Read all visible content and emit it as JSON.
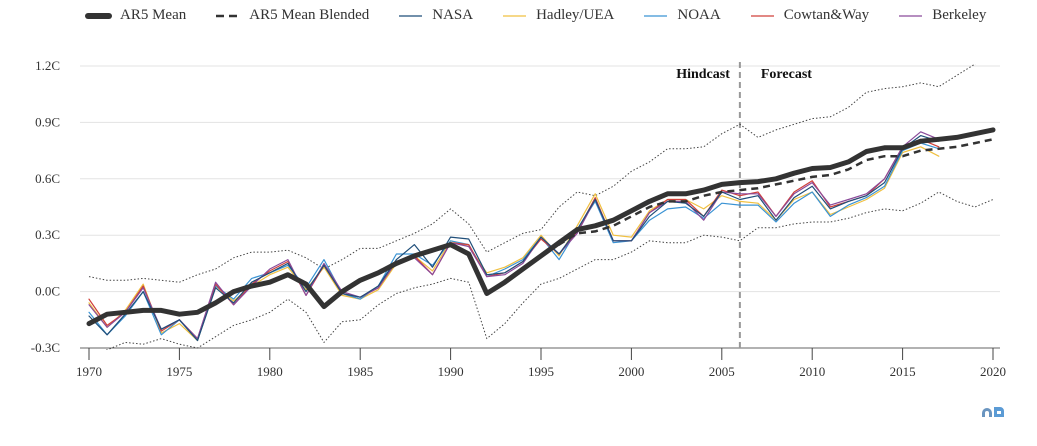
{
  "chart_data": {
    "type": "line",
    "title": "",
    "xlabel": "",
    "ylabel": "",
    "xlim": [
      1970,
      2020
    ],
    "ylim": [
      -0.3,
      1.2
    ],
    "x_ticks": [
      "1970",
      "1975",
      "1980",
      "1985",
      "1990",
      "1995",
      "2000",
      "2005",
      "2010",
      "2015",
      "2020"
    ],
    "y_ticks": [
      "-0.3C",
      "0.0C",
      "0.3C",
      "0.6C",
      "0.9C",
      "1.2C"
    ],
    "y_tick_values": [
      -0.3,
      0,
      0.3,
      0.6,
      0.9,
      1.2
    ],
    "grid": "horizontal",
    "legend_placement": "top",
    "annotations": {
      "hindcast": "Hindcast",
      "forecast": "Forecast",
      "divider_year": 2006
    },
    "series": [
      {
        "name": "AR5 Mean",
        "style": "thick-solid",
        "color": "#333333",
        "start": 1970,
        "values": [
          -0.17,
          -0.12,
          -0.11,
          -0.1,
          -0.1,
          -0.12,
          -0.11,
          -0.06,
          0.0,
          0.03,
          0.05,
          0.09,
          0.04,
          -0.08,
          0.0,
          0.06,
          0.1,
          0.15,
          0.19,
          0.22,
          0.25,
          0.2,
          -0.01,
          0.05,
          0.12,
          0.19,
          0.26,
          0.33,
          0.35,
          0.38,
          0.43,
          0.48,
          0.52,
          0.52,
          0.54,
          0.57,
          0.58,
          0.585,
          0.6,
          0.63,
          0.655,
          0.66,
          0.69,
          0.745,
          0.765,
          0.765,
          0.8,
          0.81,
          0.82,
          0.84,
          0.86
        ]
      },
      {
        "name": "AR5 Mean Blended",
        "style": "dashed",
        "color": "#333333",
        "start": 1970,
        "values": [
          -0.17,
          -0.12,
          -0.11,
          -0.1,
          -0.1,
          -0.12,
          -0.11,
          -0.06,
          0.0,
          0.03,
          0.05,
          0.09,
          0.04,
          -0.08,
          0.0,
          0.06,
          0.1,
          0.15,
          0.19,
          0.22,
          0.25,
          0.2,
          -0.01,
          0.05,
          0.12,
          0.19,
          0.25,
          0.31,
          0.32,
          0.35,
          0.4,
          0.45,
          0.48,
          0.48,
          0.51,
          0.53,
          0.54,
          0.55,
          0.57,
          0.59,
          0.61,
          0.62,
          0.65,
          0.7,
          0.72,
          0.72,
          0.75,
          0.76,
          0.77,
          0.79,
          0.81
        ]
      },
      {
        "name": "NASA",
        "style": "thin",
        "color": "#1f4e79",
        "start": 1970,
        "values": [
          -0.13,
          -0.23,
          -0.12,
          0.0,
          -0.2,
          -0.15,
          -0.26,
          0.02,
          -0.06,
          0.05,
          0.1,
          0.15,
          0.0,
          0.14,
          -0.01,
          -0.03,
          0.03,
          0.17,
          0.25,
          0.13,
          0.29,
          0.28,
          0.09,
          0.1,
          0.16,
          0.29,
          0.2,
          0.33,
          0.49,
          0.27,
          0.27,
          0.4,
          0.48,
          0.47,
          0.4,
          0.53,
          0.49,
          0.51,
          0.38,
          0.5,
          0.56,
          0.44,
          0.48,
          0.51,
          0.58,
          0.76,
          0.83,
          0.8
        ]
      },
      {
        "name": "Hadley/UEA",
        "style": "thin",
        "color": "#f0c040",
        "start": 1970,
        "values": [
          -0.06,
          -0.19,
          -0.1,
          0.04,
          -0.22,
          -0.17,
          -0.26,
          0.03,
          -0.05,
          0.03,
          0.09,
          0.13,
          0.01,
          0.13,
          -0.02,
          -0.04,
          0.01,
          0.15,
          0.19,
          0.11,
          0.27,
          0.24,
          0.1,
          0.13,
          0.18,
          0.3,
          0.19,
          0.35,
          0.52,
          0.3,
          0.29,
          0.43,
          0.49,
          0.49,
          0.44,
          0.51,
          0.48,
          0.47,
          0.38,
          0.49,
          0.53,
          0.41,
          0.45,
          0.49,
          0.55,
          0.74,
          0.77,
          0.72
        ]
      },
      {
        "name": "NOAA",
        "style": "thin",
        "color": "#3a93d4",
        "start": 1970,
        "values": [
          -0.11,
          -0.23,
          -0.13,
          0.0,
          -0.23,
          -0.15,
          -0.26,
          0.03,
          -0.04,
          0.07,
          0.1,
          0.14,
          0.02,
          0.17,
          -0.01,
          -0.04,
          0.03,
          0.2,
          0.2,
          0.14,
          0.27,
          0.25,
          0.08,
          0.12,
          0.17,
          0.29,
          0.17,
          0.33,
          0.48,
          0.26,
          0.27,
          0.38,
          0.44,
          0.45,
          0.39,
          0.47,
          0.46,
          0.46,
          0.37,
          0.47,
          0.53,
          0.4,
          0.46,
          0.5,
          0.56,
          0.75,
          0.79,
          0.76
        ]
      },
      {
        "name": "Cowtan&Way",
        "style": "thin",
        "color": "#d0403a",
        "start": 1970,
        "values": [
          -0.04,
          -0.18,
          -0.11,
          0.03,
          -0.21,
          -0.15,
          -0.25,
          0.04,
          -0.07,
          0.04,
          0.11,
          0.16,
          -0.02,
          0.14,
          -0.01,
          -0.03,
          0.02,
          0.16,
          0.19,
          0.09,
          0.26,
          0.25,
          0.08,
          0.1,
          0.16,
          0.28,
          0.2,
          0.32,
          0.5,
          0.27,
          0.27,
          0.42,
          0.49,
          0.49,
          0.4,
          0.54,
          0.51,
          0.53,
          0.4,
          0.53,
          0.59,
          0.45,
          0.48,
          0.51,
          0.6,
          0.77,
          0.81,
          0.77
        ]
      },
      {
        "name": "Berkeley",
        "style": "thin",
        "color": "#8a4a9a",
        "start": 1970,
        "values": [
          -0.07,
          -0.19,
          -0.11,
          0.02,
          -0.2,
          -0.15,
          -0.25,
          0.05,
          -0.07,
          0.03,
          0.12,
          0.17,
          -0.02,
          0.15,
          0.0,
          -0.03,
          0.02,
          0.16,
          0.18,
          0.09,
          0.26,
          0.24,
          0.08,
          0.09,
          0.15,
          0.29,
          0.2,
          0.31,
          0.49,
          0.27,
          0.27,
          0.42,
          0.48,
          0.48,
          0.38,
          0.53,
          0.52,
          0.52,
          0.4,
          0.52,
          0.58,
          0.46,
          0.49,
          0.52,
          0.6,
          0.77,
          0.85,
          0.81
        ]
      },
      {
        "style": "dotted-envelope-upper",
        "color": "#444444",
        "start": 1970,
        "values": [
          0.08,
          0.06,
          0.06,
          0.07,
          0.06,
          0.05,
          0.09,
          0.12,
          0.18,
          0.21,
          0.21,
          0.22,
          0.18,
          0.12,
          0.17,
          0.23,
          0.23,
          0.27,
          0.31,
          0.36,
          0.44,
          0.36,
          0.21,
          0.26,
          0.31,
          0.33,
          0.45,
          0.53,
          0.51,
          0.56,
          0.64,
          0.69,
          0.76,
          0.76,
          0.77,
          0.84,
          0.89,
          0.82,
          0.86,
          0.89,
          0.92,
          0.93,
          0.98,
          1.06,
          1.08,
          1.09,
          1.11,
          1.09,
          1.15,
          1.21,
          1.28
        ]
      },
      {
        "style": "dotted-envelope-lower",
        "color": "#444444",
        "start": 1970,
        "values": [
          -0.33,
          -0.31,
          -0.27,
          -0.28,
          -0.25,
          -0.28,
          -0.3,
          -0.24,
          -0.18,
          -0.15,
          -0.11,
          -0.04,
          -0.11,
          -0.27,
          -0.16,
          -0.15,
          -0.07,
          -0.01,
          0.02,
          0.04,
          0.07,
          0.05,
          -0.25,
          -0.17,
          -0.06,
          0.04,
          0.07,
          0.12,
          0.17,
          0.17,
          0.21,
          0.27,
          0.26,
          0.26,
          0.3,
          0.29,
          0.27,
          0.34,
          0.34,
          0.36,
          0.37,
          0.37,
          0.39,
          0.42,
          0.44,
          0.43,
          0.47,
          0.53,
          0.48,
          0.45,
          0.49
        ]
      }
    ]
  },
  "legend": {
    "items": [
      {
        "label": "AR5 Mean",
        "color": "#333333",
        "style": "thick"
      },
      {
        "label": "AR5 Mean Blended",
        "color": "#333333",
        "style": "dashed"
      },
      {
        "label": "NASA",
        "color": "#1f4e79",
        "style": "thin"
      },
      {
        "label": "Hadley/UEA",
        "color": "#f0c040",
        "style": "thin"
      },
      {
        "label": "NOAA",
        "color": "#3a93d4",
        "style": "thin"
      },
      {
        "label": "Cowtan&Way",
        "color": "#d0403a",
        "style": "thin"
      },
      {
        "label": "Berkeley",
        "color": "#8a4a9a",
        "style": "thin"
      }
    ]
  },
  "logo": {
    "text": "CB",
    "color": "#5b9bd5"
  }
}
